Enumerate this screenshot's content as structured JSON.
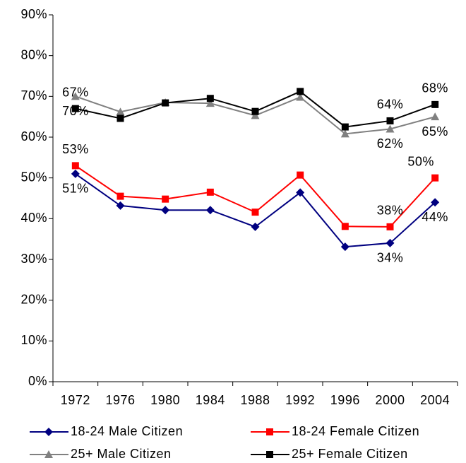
{
  "chart_data": {
    "type": "line",
    "categories": [
      "1972",
      "1976",
      "1980",
      "1984",
      "1988",
      "1992",
      "1996",
      "2000",
      "2004"
    ],
    "ylim": [
      0,
      90
    ],
    "yticks": [
      {
        "value": 0,
        "label": "0%"
      },
      {
        "value": 10,
        "label": "10%"
      },
      {
        "value": 20,
        "label": "20%"
      },
      {
        "value": 30,
        "label": "30%"
      },
      {
        "value": 40,
        "label": "40%"
      },
      {
        "value": 50,
        "label": "50%"
      },
      {
        "value": 60,
        "label": "60%"
      },
      {
        "value": 70,
        "label": "70%"
      },
      {
        "value": 80,
        "label": "80%"
      },
      {
        "value": 90,
        "label": "90%"
      }
    ],
    "series": [
      {
        "name": "18-24 Male Citizen",
        "color": "#000080",
        "marker": "diamond",
        "values": [
          51,
          43.2,
          42.1,
          42.1,
          38,
          46.4,
          33.1,
          34,
          44
        ],
        "value_labels": [
          "51%",
          null,
          null,
          null,
          null,
          null,
          null,
          "34%",
          "44%"
        ]
      },
      {
        "name": "18-24 Female Citizen",
        "color": "#ff0000",
        "marker": "square",
        "values": [
          53,
          45.5,
          44.8,
          46.5,
          41.6,
          50.7,
          38.1,
          38,
          50
        ],
        "value_labels": [
          "53%",
          null,
          null,
          null,
          null,
          null,
          null,
          "38%",
          "50%"
        ]
      },
      {
        "name": "25+ Male Citizen",
        "color": "#808080",
        "marker": "triangle",
        "values": [
          70,
          66.2,
          68.5,
          68.3,
          65.3,
          69.8,
          60.8,
          62,
          65
        ],
        "value_labels": [
          "70%",
          null,
          null,
          null,
          null,
          null,
          null,
          "62%",
          "65%"
        ]
      },
      {
        "name": "25+ Female Citizen",
        "color": "#000000",
        "marker": "square",
        "values": [
          67,
          64.6,
          68.4,
          69.5,
          66.3,
          71.2,
          62.5,
          64,
          68
        ],
        "value_labels": [
          "67%",
          null,
          null,
          null,
          null,
          null,
          null,
          "64%",
          "68%"
        ]
      }
    ]
  }
}
